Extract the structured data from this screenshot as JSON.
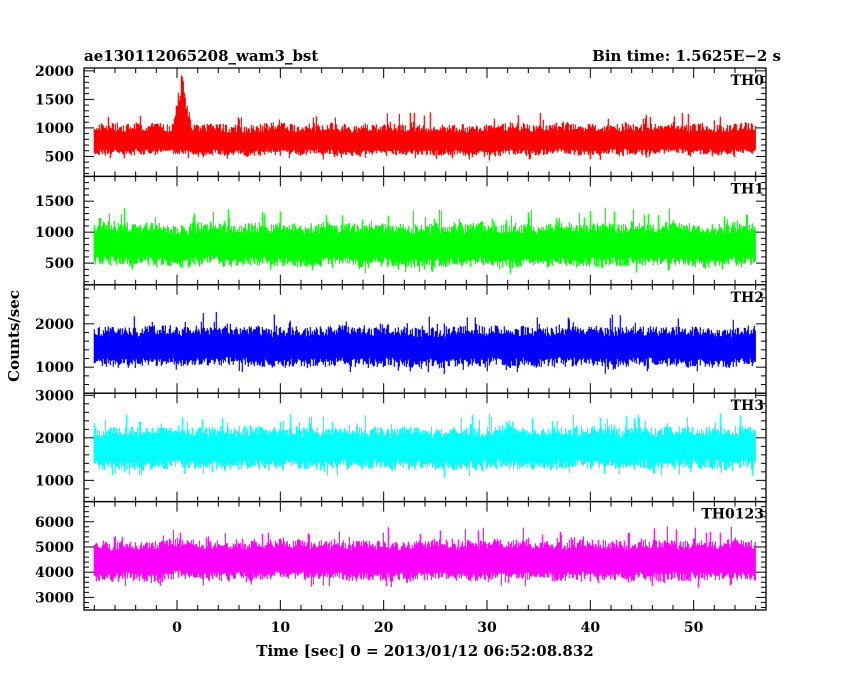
{
  "chart_data": {
    "type": "line",
    "title_left": "ae130112065208_wam3_bst",
    "title_right": "Bin time: 1.5625E−2 s",
    "xlabel": "Time [sec] 0 = 2013/01/12 06:52:08.832",
    "ylabel": "Counts/sec",
    "xlim": [
      -9,
      57
    ],
    "xticks": [
      0,
      10,
      20,
      30,
      40,
      50
    ],
    "data_x_range": [
      -8,
      56
    ],
    "grid": false,
    "panels": [
      {
        "name": "TH0",
        "color": "#ff0000",
        "ylim": [
          150,
          2050
        ],
        "yticks": [
          500,
          1000,
          1500,
          2000
        ],
        "baseline": 750,
        "noise_high": 330,
        "noise_low": 230,
        "spikes": [
          {
            "x": 0.5,
            "peak": 2020,
            "width": 1.2
          }
        ]
      },
      {
        "name": "TH1",
        "color": "#00ff00",
        "ylim": [
          150,
          1900
        ],
        "yticks": [
          500,
          1000,
          1500
        ],
        "baseline": 780,
        "noise_high": 380,
        "noise_low": 330,
        "spikes": []
      },
      {
        "name": "TH2",
        "color": "#0000ff",
        "ylim": [
          400,
          2900
        ],
        "yticks": [
          1000,
          2000
        ],
        "baseline": 1450,
        "noise_high": 500,
        "noise_low": 450,
        "spikes": []
      },
      {
        "name": "TH3",
        "color": "#00ffff",
        "ylim": [
          500,
          3050
        ],
        "yticks": [
          1000,
          2000,
          3000
        ],
        "baseline": 1750,
        "noise_high": 520,
        "noise_low": 500,
        "spikes": []
      },
      {
        "name": "TH0123",
        "color": "#ff00ff",
        "ylim": [
          2500,
          6800
        ],
        "yticks": [
          3000,
          4000,
          5000,
          6000
        ],
        "baseline": 4450,
        "noise_high": 850,
        "noise_low": 800,
        "spikes": []
      }
    ]
  }
}
